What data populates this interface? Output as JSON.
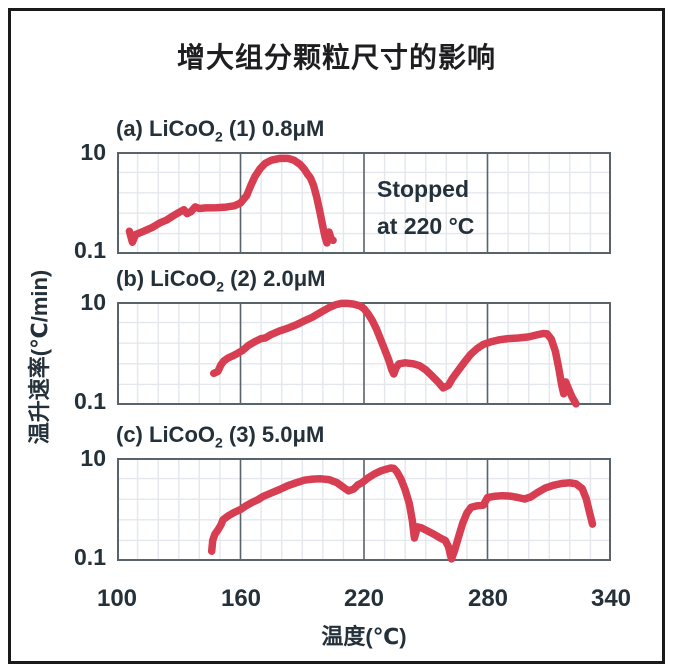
{
  "colors": {
    "curve": "#d73e52",
    "grid_minor": "#e4e7eb",
    "grid_major": "#59636b",
    "panel_border": "#59636b",
    "text": "#24313a",
    "frame": "#1a1a1a"
  },
  "chart_data": {
    "type": "line",
    "title": "增大组分颗粒尺寸的影响",
    "xlabel": "温度(℃)",
    "ylabel": "温升速率(℃/min)",
    "x_range": [
      100,
      340
    ],
    "y_range": [
      0.1,
      10
    ],
    "y_scale": "log",
    "grid": "on",
    "x_tick_labels": [
      "100",
      "160",
      "220",
      "280",
      "340"
    ],
    "y_tick_top": "10",
    "y_tick_bottom": "0.1",
    "annotation": {
      "line1": "Stopped",
      "line2": "at 220 °C"
    },
    "panels": [
      {
        "id": "a",
        "label_prefix": "(a) LiCoO",
        "label_sub": "2",
        "label_suffix": " (1) 0.8μM",
        "points": [
          [
            106,
            0.28
          ],
          [
            107.5,
            0.17
          ],
          [
            109,
            0.24
          ],
          [
            113,
            0.28
          ],
          [
            117,
            0.33
          ],
          [
            121,
            0.41
          ],
          [
            124,
            0.46
          ],
          [
            127,
            0.55
          ],
          [
            130,
            0.65
          ],
          [
            132.5,
            0.74
          ],
          [
            134,
            0.62
          ],
          [
            136,
            0.68
          ],
          [
            138,
            0.84
          ],
          [
            140,
            0.78
          ],
          [
            143,
            0.8
          ],
          [
            148,
            0.81
          ],
          [
            153,
            0.83
          ],
          [
            157,
            0.88
          ],
          [
            160,
            1.0
          ],
          [
            163,
            1.4
          ],
          [
            165,
            2.2
          ],
          [
            167,
            3.3
          ],
          [
            169.5,
            4.7
          ],
          [
            172,
            6.0
          ],
          [
            175,
            6.9
          ],
          [
            179,
            7.5
          ],
          [
            183,
            7.5
          ],
          [
            186,
            6.9
          ],
          [
            189,
            5.7
          ],
          [
            191,
            4.6
          ],
          [
            192.5,
            3.7
          ],
          [
            194,
            3.1
          ],
          [
            195.5,
            2.2
          ],
          [
            197,
            1.3
          ],
          [
            198.5,
            0.7
          ],
          [
            200,
            0.35
          ],
          [
            201,
            0.22
          ],
          [
            202,
            0.165
          ],
          [
            203,
            0.27
          ],
          [
            204,
            0.2
          ],
          [
            205,
            0.185
          ]
        ]
      },
      {
        "id": "b",
        "label_prefix": "(b) LiCoO",
        "label_sub": "2",
        "label_suffix": " (2) 2.0μM",
        "points": [
          [
            147,
            0.41
          ],
          [
            149,
            0.45
          ],
          [
            150.5,
            0.6
          ],
          [
            152,
            0.72
          ],
          [
            154,
            0.82
          ],
          [
            156,
            0.89
          ],
          [
            158,
            0.98
          ],
          [
            161,
            1.15
          ],
          [
            164,
            1.45
          ],
          [
            167,
            1.7
          ],
          [
            170,
            1.95
          ],
          [
            172,
            2.0
          ],
          [
            175,
            2.35
          ],
          [
            179,
            2.75
          ],
          [
            183,
            3.1
          ],
          [
            187,
            3.6
          ],
          [
            191,
            4.3
          ],
          [
            195,
            5.1
          ],
          [
            199,
            6.3
          ],
          [
            203,
            7.8
          ],
          [
            206,
            8.8
          ],
          [
            209,
            9.4
          ],
          [
            212,
            9.4
          ],
          [
            215,
            9.1
          ],
          [
            218,
            8.4
          ],
          [
            220,
            7.4
          ],
          [
            222,
            5.9
          ],
          [
            224,
            4.4
          ],
          [
            226,
            3.0
          ],
          [
            228,
            1.9
          ],
          [
            230,
            1.2
          ],
          [
            232,
            0.75
          ],
          [
            233.5,
            0.48
          ],
          [
            234.5,
            0.4
          ],
          [
            235.5,
            0.52
          ],
          [
            237,
            0.63
          ],
          [
            240,
            0.66
          ],
          [
            244,
            0.63
          ],
          [
            247,
            0.58
          ],
          [
            250,
            0.48
          ],
          [
            253,
            0.37
          ],
          [
            256,
            0.28
          ],
          [
            258.5,
            0.215
          ],
          [
            261,
            0.24
          ],
          [
            263,
            0.33
          ],
          [
            266,
            0.48
          ],
          [
            269,
            0.7
          ],
          [
            272,
            0.98
          ],
          [
            275,
            1.25
          ],
          [
            278,
            1.5
          ],
          [
            282,
            1.7
          ],
          [
            286,
            1.85
          ],
          [
            290,
            1.95
          ],
          [
            295,
            2.0
          ],
          [
            300,
            2.1
          ],
          [
            304,
            2.3
          ],
          [
            307,
            2.45
          ],
          [
            309,
            2.4
          ],
          [
            311,
            1.9
          ],
          [
            313,
            1.1
          ],
          [
            314.5,
            0.55
          ],
          [
            316,
            0.25
          ],
          [
            317,
            0.165
          ],
          [
            318,
            0.28
          ],
          [
            319.5,
            0.2
          ],
          [
            321,
            0.145
          ],
          [
            323,
            0.105
          ]
        ]
      },
      {
        "id": "c",
        "label_prefix": "(c) LiCoO",
        "label_sub": "2",
        "label_suffix": " (3) 5.0μM",
        "points": [
          [
            146,
            0.155
          ],
          [
            146.5,
            0.25
          ],
          [
            147.5,
            0.33
          ],
          [
            149,
            0.4
          ],
          [
            150.5,
            0.5
          ],
          [
            151.5,
            0.63
          ],
          [
            154,
            0.75
          ],
          [
            157,
            0.88
          ],
          [
            160,
            1.0
          ],
          [
            163,
            1.2
          ],
          [
            166,
            1.4
          ],
          [
            168.5,
            1.55
          ],
          [
            171,
            1.8
          ],
          [
            175,
            2.1
          ],
          [
            179,
            2.45
          ],
          [
            183,
            2.9
          ],
          [
            187,
            3.3
          ],
          [
            191,
            3.7
          ],
          [
            195,
            3.9
          ],
          [
            199,
            3.95
          ],
          [
            203,
            3.8
          ],
          [
            207,
            3.3
          ],
          [
            210,
            2.7
          ],
          [
            212.5,
            2.3
          ],
          [
            215,
            2.5
          ],
          [
            217,
            3.0
          ],
          [
            219,
            3.3
          ],
          [
            222,
            4.1
          ],
          [
            225,
            4.9
          ],
          [
            228,
            5.6
          ],
          [
            231,
            6.1
          ],
          [
            233,
            6.4
          ],
          [
            234.5,
            6.3
          ],
          [
            236,
            5.4
          ],
          [
            238,
            3.9
          ],
          [
            240,
            2.4
          ],
          [
            242,
            1.3
          ],
          [
            243.5,
            0.6
          ],
          [
            244.5,
            0.28
          ],
          [
            246,
            0.46
          ],
          [
            248,
            0.44
          ],
          [
            251,
            0.38
          ],
          [
            254,
            0.33
          ],
          [
            257,
            0.28
          ],
          [
            259.5,
            0.25
          ],
          [
            261,
            0.19
          ],
          [
            262.5,
            0.11
          ],
          [
            264,
            0.16
          ],
          [
            266,
            0.3
          ],
          [
            268,
            0.55
          ],
          [
            270,
            0.85
          ],
          [
            272,
            1.1
          ],
          [
            275,
            1.18
          ],
          [
            278,
            1.22
          ],
          [
            280,
            1.7
          ],
          [
            283,
            1.8
          ],
          [
            287,
            1.85
          ],
          [
            291,
            1.82
          ],
          [
            295,
            1.7
          ],
          [
            298,
            1.6
          ],
          [
            301,
            1.75
          ],
          [
            304,
            2.1
          ],
          [
            308,
            2.6
          ],
          [
            312,
            2.95
          ],
          [
            316,
            3.2
          ],
          [
            320,
            3.3
          ],
          [
            323,
            3.15
          ],
          [
            326,
            2.55
          ],
          [
            328,
            1.6
          ],
          [
            329.5,
            0.9
          ],
          [
            331,
            0.52
          ]
        ]
      }
    ]
  }
}
